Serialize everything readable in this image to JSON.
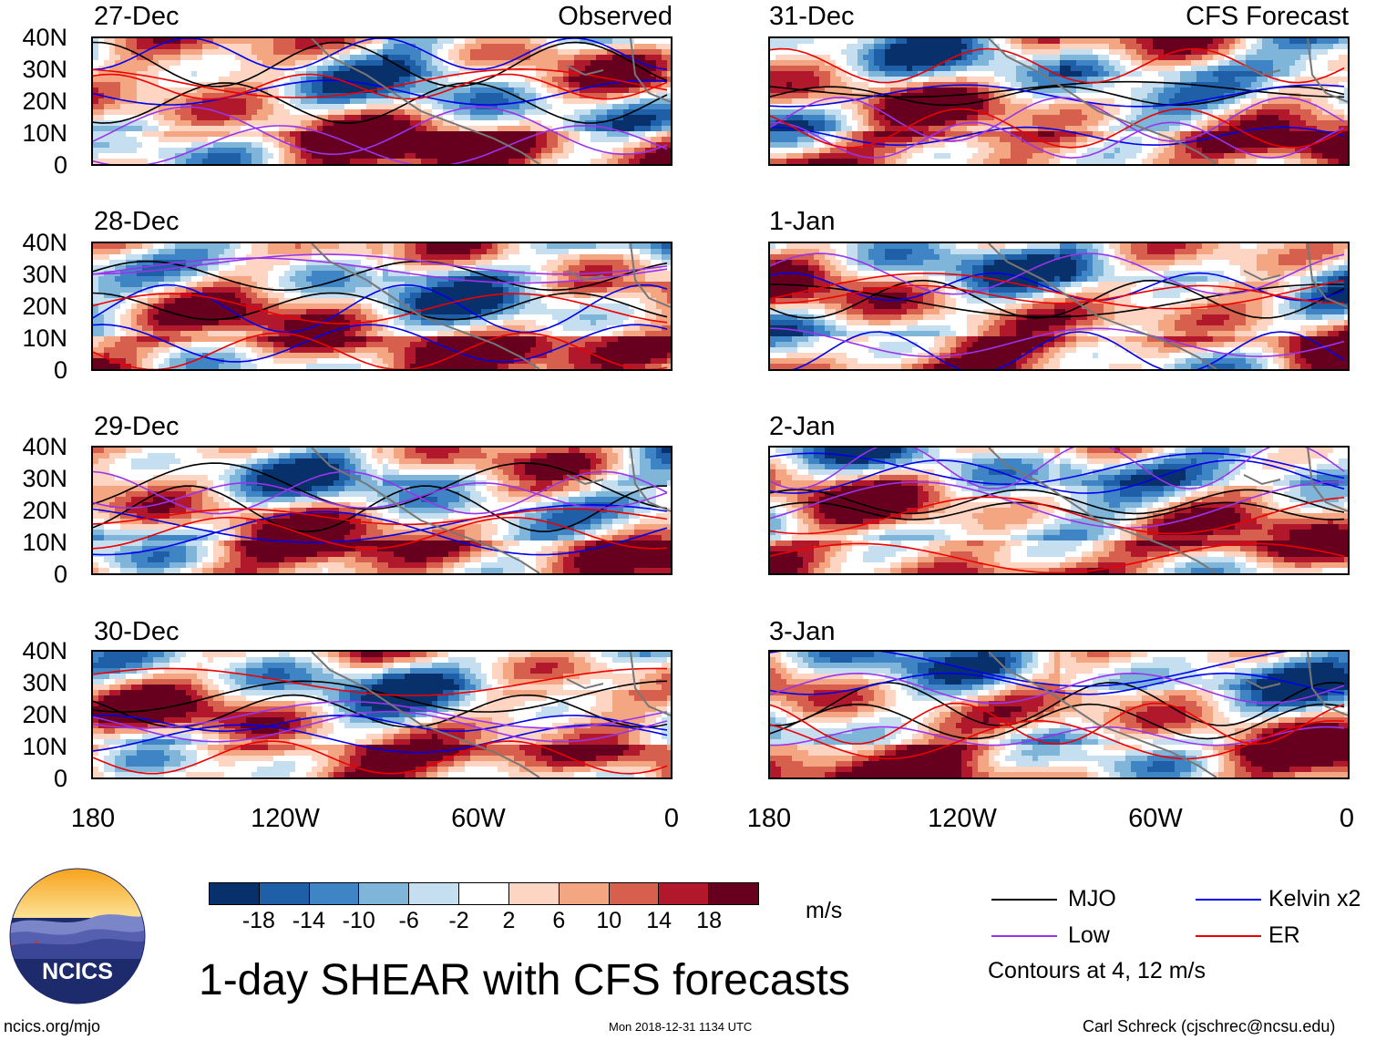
{
  "figure": {
    "title": "1-day SHEAR with CFS forecasts",
    "website": "ncics.org/mjo",
    "timestamp": "Mon 2018-12-31 1134 UTC",
    "author": "Carl Schreck (cjschrec@ncsu.edu)",
    "logo_text": "NCICS"
  },
  "columns": {
    "observed_label": "Observed",
    "forecast_label": "CFS Forecast"
  },
  "panels": {
    "left": [
      "27-Dec",
      "28-Dec",
      "29-Dec",
      "30-Dec"
    ],
    "right": [
      "31-Dec",
      "1-Jan",
      "2-Jan",
      "3-Jan"
    ]
  },
  "axes": {
    "lat_labels": [
      "40N",
      "30N",
      "20N",
      "10N",
      "0"
    ],
    "lon_labels": [
      "180",
      "120W",
      "60W",
      "0"
    ]
  },
  "colorbar": {
    "unit": "m/s",
    "tick_labels": [
      "-18",
      "-14",
      "-10",
      "-6",
      "-2",
      "2",
      "6",
      "10",
      "14",
      "18"
    ],
    "colors": [
      "#08306b",
      "#1f5fa8",
      "#3f84c4",
      "#7fb5d9",
      "#c6dff0",
      "#ffffff",
      "#fdd5c2",
      "#f4a582",
      "#d6604d",
      "#b2182b",
      "#67001f"
    ]
  },
  "legend": {
    "mjo": {
      "label": "MJO",
      "color": "#000000"
    },
    "kelvin": {
      "label": "Kelvin x2",
      "color": "#0000ee"
    },
    "low": {
      "label": "Low",
      "color": "#9933ee"
    },
    "er": {
      "label": "ER",
      "color": "#ee0000"
    },
    "note": "Contours at 4, 12 m/s"
  }
}
